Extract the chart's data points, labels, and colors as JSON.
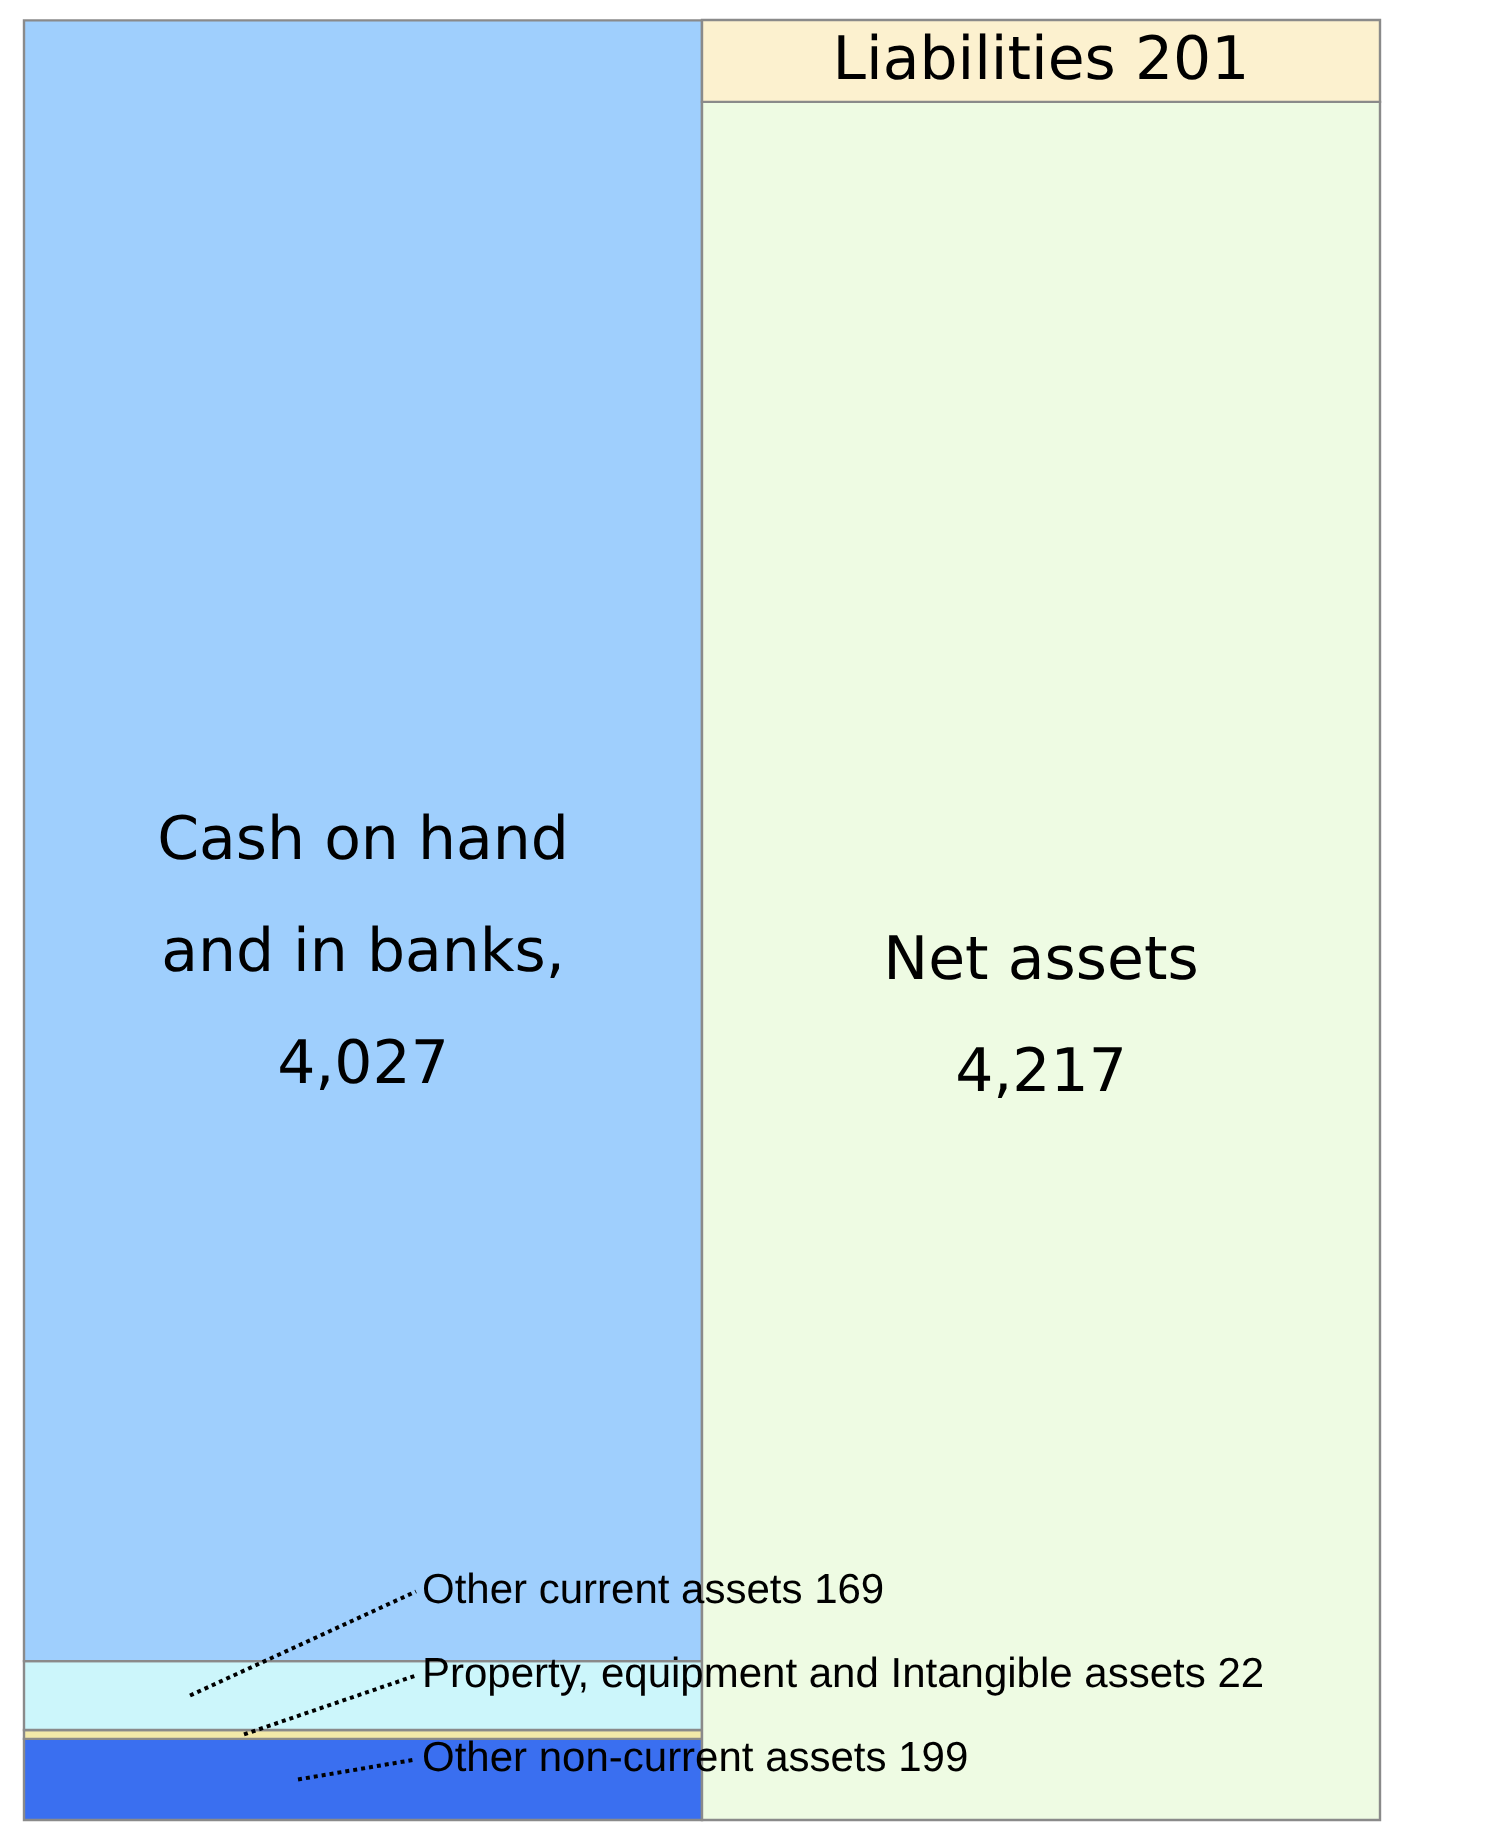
{
  "chart_data": {
    "type": "bar",
    "stacked": true,
    "categories": [
      null,
      null
    ],
    "data_labels": true,
    "series": [
      {
        "name": "Other non-current assets",
        "color": "#3a6ff0",
        "values": [
          199,
          null
        ],
        "value_labels": [
          "199",
          null
        ]
      },
      {
        "name": "Property, equipment and Intangible assets",
        "color": "#f3e9a8",
        "values": [
          22,
          null
        ],
        "value_labels": [
          "22",
          null
        ]
      },
      {
        "name": "Other current assets",
        "color": "#ccf6fb",
        "values": [
          169,
          null
        ],
        "value_labels": [
          "169",
          null
        ]
      },
      {
        "name": "Cash on hand and in banks,",
        "color": "#9fcffd",
        "values": [
          4027,
          null
        ],
        "value_labels": [
          "4,027",
          null
        ]
      },
      {
        "name": "Net assets",
        "color": "#eefbe3",
        "values": [
          null,
          4217
        ],
        "value_labels": [
          null,
          "4,217"
        ]
      },
      {
        "name": "Liabilities",
        "color": "#fcf1cf",
        "values": [
          null,
          201
        ],
        "value_labels": [
          null,
          "201"
        ]
      }
    ]
  }
}
